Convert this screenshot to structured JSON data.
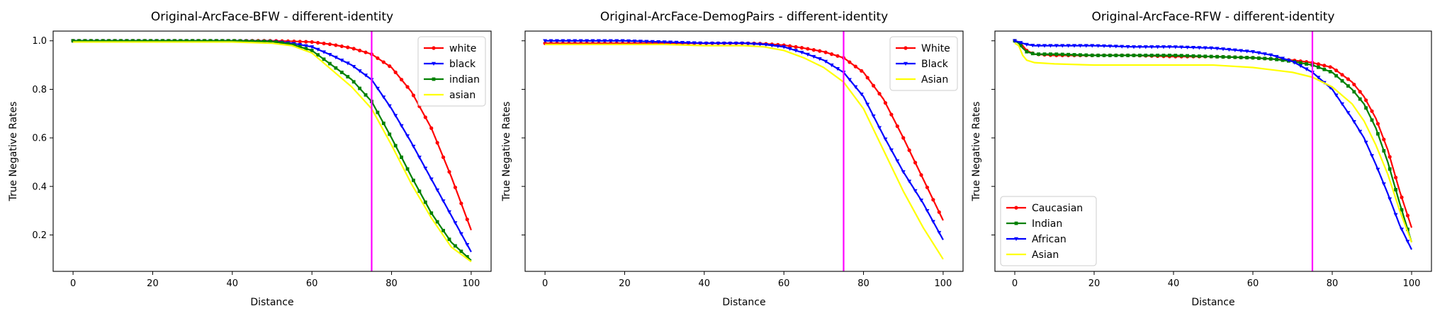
{
  "chart_data": [
    {
      "type": "line",
      "title": "Original-ArcFace-BFW - different-identity",
      "xlabel": "Distance",
      "ylabel": "True Negative Rates",
      "xlim": [
        -5,
        105
      ],
      "ylim": [
        0.05,
        1.04
      ],
      "xticks": [
        0,
        20,
        40,
        60,
        80,
        100
      ],
      "yticks": [
        0.2,
        0.4,
        0.6,
        0.8,
        1.0
      ],
      "ytick_labels": true,
      "threshold_x": 75,
      "threshold_color": "#ff00ff",
      "legend_position": "upper right",
      "x": [
        0,
        10,
        20,
        30,
        40,
        50,
        55,
        60,
        65,
        70,
        75,
        80,
        85,
        90,
        95,
        100
      ],
      "series": [
        {
          "name": "white",
          "color": "#ff0000",
          "marker": "circle",
          "values": [
            1.0,
            1.0,
            1.0,
            1.0,
            1.0,
            1.0,
            0.998,
            0.995,
            0.985,
            0.97,
            0.945,
            0.89,
            0.79,
            0.64,
            0.44,
            0.22
          ]
        },
        {
          "name": "black",
          "color": "#0000ff",
          "marker": "triangle-down",
          "values": [
            1.0,
            1.0,
            1.0,
            1.0,
            1.0,
            0.998,
            0.99,
            0.975,
            0.94,
            0.9,
            0.84,
            0.72,
            0.58,
            0.43,
            0.28,
            0.13
          ]
        },
        {
          "name": "indian",
          "color": "#008000",
          "marker": "square",
          "values": [
            1.0,
            1.0,
            1.0,
            1.0,
            1.0,
            0.997,
            0.985,
            0.96,
            0.9,
            0.84,
            0.75,
            0.6,
            0.44,
            0.29,
            0.17,
            0.095
          ]
        },
        {
          "name": "asian",
          "color": "#ffff00",
          "marker": "none",
          "values": [
            0.995,
            0.995,
            0.995,
            0.995,
            0.995,
            0.99,
            0.98,
            0.95,
            0.88,
            0.81,
            0.72,
            0.57,
            0.41,
            0.27,
            0.15,
            0.09
          ]
        }
      ]
    },
    {
      "type": "line",
      "title": "Original-ArcFace-DemogPairs - different-identity",
      "xlabel": "Distance",
      "ylabel": "True Negative Rates",
      "xlim": [
        -5,
        105
      ],
      "ylim": [
        0.05,
        1.04
      ],
      "xticks": [
        0,
        20,
        40,
        60,
        80,
        100
      ],
      "yticks": [
        0.2,
        0.4,
        0.6,
        0.8,
        1.0
      ],
      "ytick_labels": false,
      "threshold_x": 75,
      "threshold_color": "#ff00ff",
      "legend_position": "upper right",
      "x": [
        0,
        10,
        20,
        30,
        40,
        50,
        55,
        60,
        65,
        70,
        75,
        80,
        85,
        90,
        95,
        100
      ],
      "series": [
        {
          "name": "White",
          "color": "#ff0000",
          "marker": "circle",
          "values": [
            0.99,
            0.99,
            0.99,
            0.99,
            0.99,
            0.99,
            0.988,
            0.982,
            0.97,
            0.955,
            0.93,
            0.87,
            0.76,
            0.6,
            0.43,
            0.26
          ]
        },
        {
          "name": "Black",
          "color": "#0000ff",
          "marker": "triangle-down",
          "values": [
            1.0,
            1.0,
            1.0,
            0.995,
            0.99,
            0.99,
            0.985,
            0.975,
            0.95,
            0.92,
            0.87,
            0.77,
            0.61,
            0.46,
            0.33,
            0.18
          ]
        },
        {
          "name": "Asian",
          "color": "#ffff00",
          "marker": "none",
          "values": [
            0.985,
            0.985,
            0.985,
            0.985,
            0.98,
            0.98,
            0.975,
            0.96,
            0.93,
            0.89,
            0.83,
            0.72,
            0.55,
            0.38,
            0.23,
            0.1
          ]
        }
      ]
    },
    {
      "type": "line",
      "title": "Original-ArcFace-RFW - different-identity",
      "xlabel": "Distance",
      "ylabel": "True Negative Rates",
      "xlim": [
        -5,
        105
      ],
      "ylim": [
        0.05,
        1.04
      ],
      "xticks": [
        0,
        20,
        40,
        60,
        80,
        100
      ],
      "yticks": [
        0.2,
        0.4,
        0.6,
        0.8,
        1.0
      ],
      "ytick_labels": false,
      "threshold_x": 75,
      "threshold_color": "#ff00ff",
      "legend_position": "lower left",
      "x": [
        0,
        1,
        2,
        3,
        5,
        10,
        20,
        30,
        40,
        50,
        60,
        65,
        70,
        75,
        80,
        85,
        88,
        91,
        94,
        97,
        100
      ],
      "series": [
        {
          "name": "Caucasian",
          "color": "#ff0000",
          "marker": "circle",
          "values": [
            1.0,
            0.995,
            0.98,
            0.96,
            0.945,
            0.94,
            0.94,
            0.94,
            0.935,
            0.935,
            0.93,
            0.925,
            0.92,
            0.91,
            0.89,
            0.83,
            0.77,
            0.68,
            0.55,
            0.38,
            0.23
          ]
        },
        {
          "name": "Indian",
          "color": "#008000",
          "marker": "square",
          "values": [
            1.0,
            0.99,
            0.97,
            0.955,
            0.945,
            0.945,
            0.94,
            0.94,
            0.94,
            0.935,
            0.93,
            0.925,
            0.915,
            0.9,
            0.87,
            0.8,
            0.74,
            0.64,
            0.5,
            0.33,
            0.17
          ]
        },
        {
          "name": "African",
          "color": "#0000ff",
          "marker": "triangle-down",
          "values": [
            1.0,
            0.995,
            0.99,
            0.985,
            0.98,
            0.98,
            0.98,
            0.975,
            0.975,
            0.97,
            0.955,
            0.94,
            0.915,
            0.87,
            0.8,
            0.68,
            0.6,
            0.49,
            0.37,
            0.24,
            0.14
          ]
        },
        {
          "name": "Asian",
          "color": "#ffff00",
          "marker": "none",
          "values": [
            0.99,
            0.98,
            0.94,
            0.92,
            0.91,
            0.905,
            0.9,
            0.9,
            0.9,
            0.9,
            0.89,
            0.88,
            0.87,
            0.85,
            0.81,
            0.74,
            0.67,
            0.57,
            0.45,
            0.3,
            0.17
          ]
        }
      ]
    }
  ]
}
